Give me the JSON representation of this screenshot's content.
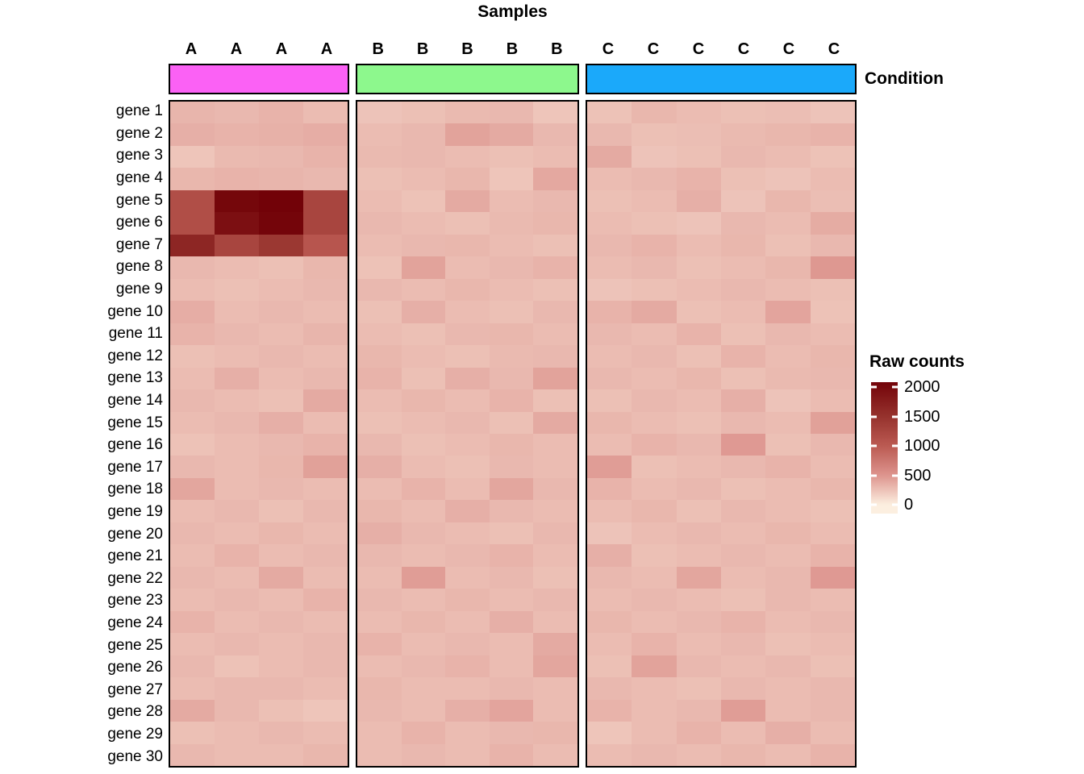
{
  "title": "Samples",
  "condition_label": "Condition",
  "legend": {
    "title": "Raw counts",
    "tick_labels": [
      "2000",
      "1500",
      "1000",
      "500",
      "0"
    ],
    "tick_values": [
      2000,
      1500,
      1000,
      500,
      0
    ]
  },
  "chart_data": {
    "type": "heatmap",
    "title": "Samples",
    "legend_title": "Raw counts",
    "annotation_label": "Condition",
    "column_groups": [
      {
        "name": "A",
        "color": "#FB61F5",
        "n_columns": 4
      },
      {
        "name": "B",
        "color": "#8DF88D",
        "n_columns": 5
      },
      {
        "name": "C",
        "color": "#1BA9FA",
        "n_columns": 6
      }
    ],
    "column_labels": [
      "A",
      "A",
      "A",
      "A",
      "B",
      "B",
      "B",
      "B",
      "B",
      "C",
      "C",
      "C",
      "C",
      "C",
      "C"
    ],
    "row_labels": [
      "gene 1",
      "gene 2",
      "gene 3",
      "gene 4",
      "gene 5",
      "gene 6",
      "gene 7",
      "gene 8",
      "gene 9",
      "gene 10",
      "gene 11",
      "gene 12",
      "gene 13",
      "gene 14",
      "gene 15",
      "gene 16",
      "gene 17",
      "gene 18",
      "gene 19",
      "gene 20",
      "gene 21",
      "gene 22",
      "gene 23",
      "gene 24",
      "gene 25",
      "gene 26",
      "gene 27",
      "gene 28",
      "gene 29",
      "gene 30"
    ],
    "value_range": [
      0,
      2096
    ],
    "legend_ticks": [
      0,
      500,
      1000,
      1500,
      2000
    ],
    "colormap_stops": [
      [
        0,
        "#FCEFE0"
      ],
      [
        500,
        "#DD948E"
      ],
      [
        1000,
        "#BB5A52"
      ],
      [
        1500,
        "#96322D"
      ],
      [
        2096,
        "#720208"
      ]
    ],
    "values": [
      [
        320,
        300,
        330,
        280,
        240,
        260,
        290,
        300,
        230,
        250,
        310,
        280,
        260,
        270,
        240
      ],
      [
        350,
        330,
        340,
        360,
        280,
        300,
        420,
        380,
        300,
        300,
        260,
        270,
        290,
        310,
        330
      ],
      [
        230,
        290,
        300,
        330,
        290,
        300,
        280,
        260,
        280,
        380,
        240,
        260,
        300,
        280,
        250
      ],
      [
        310,
        330,
        320,
        300,
        260,
        280,
        310,
        230,
        390,
        280,
        300,
        330,
        260,
        240,
        280
      ],
      [
        1150,
        2040,
        2096,
        1260,
        280,
        250,
        380,
        280,
        300,
        260,
        280,
        350,
        240,
        310,
        270
      ],
      [
        1150,
        1930,
        2060,
        1260,
        300,
        280,
        260,
        290,
        310,
        280,
        260,
        240,
        300,
        280,
        370
      ],
      [
        1650,
        1260,
        1430,
        1060,
        280,
        300,
        310,
        280,
        260,
        300,
        330,
        280,
        310,
        260,
        300
      ],
      [
        300,
        280,
        260,
        310,
        250,
        420,
        280,
        300,
        330,
        280,
        300,
        260,
        280,
        310,
        480
      ],
      [
        280,
        260,
        280,
        300,
        300,
        280,
        310,
        280,
        260,
        240,
        260,
        280,
        300,
        280,
        260
      ],
      [
        360,
        280,
        300,
        280,
        260,
        350,
        280,
        260,
        300,
        330,
        380,
        260,
        280,
        410,
        250
      ],
      [
        330,
        300,
        280,
        320,
        280,
        260,
        300,
        310,
        280,
        300,
        280,
        330,
        260,
        300,
        280
      ],
      [
        260,
        280,
        300,
        280,
        310,
        280,
        260,
        290,
        300,
        280,
        300,
        260,
        330,
        280,
        310
      ],
      [
        280,
        350,
        280,
        300,
        330,
        260,
        350,
        300,
        420,
        300,
        280,
        310,
        260,
        290,
        300
      ],
      [
        300,
        280,
        260,
        380,
        280,
        310,
        280,
        330,
        260,
        260,
        300,
        280,
        350,
        240,
        280
      ],
      [
        280,
        300,
        350,
        280,
        260,
        280,
        300,
        260,
        380,
        310,
        280,
        260,
        300,
        280,
        430
      ],
      [
        250,
        280,
        300,
        330,
        300,
        260,
        280,
        310,
        280,
        280,
        330,
        300,
        470,
        260,
        300
      ],
      [
        300,
        280,
        310,
        430,
        350,
        280,
        260,
        300,
        280,
        450,
        260,
        280,
        300,
        330,
        280
      ],
      [
        400,
        280,
        300,
        280,
        280,
        330,
        280,
        400,
        300,
        330,
        280,
        300,
        260,
        280,
        310
      ],
      [
        280,
        300,
        260,
        300,
        310,
        280,
        350,
        300,
        280,
        280,
        310,
        260,
        300,
        280,
        260
      ],
      [
        300,
        280,
        310,
        280,
        350,
        300,
        280,
        260,
        300,
        240,
        280,
        300,
        280,
        310,
        280
      ],
      [
        280,
        330,
        280,
        300,
        300,
        280,
        300,
        330,
        280,
        350,
        260,
        280,
        300,
        280,
        330
      ],
      [
        300,
        280,
        380,
        280,
        280,
        450,
        280,
        300,
        260,
        300,
        280,
        400,
        280,
        300,
        470
      ],
      [
        280,
        300,
        280,
        330,
        300,
        280,
        310,
        280,
        300,
        280,
        300,
        280,
        260,
        300,
        280
      ],
      [
        330,
        280,
        300,
        280,
        280,
        310,
        280,
        350,
        280,
        310,
        280,
        300,
        330,
        280,
        300
      ],
      [
        280,
        300,
        280,
        300,
        330,
        280,
        300,
        280,
        380,
        280,
        330,
        280,
        300,
        260,
        280
      ],
      [
        300,
        250,
        280,
        300,
        280,
        300,
        330,
        280,
        400,
        260,
        420,
        300,
        280,
        300,
        260
      ],
      [
        280,
        300,
        300,
        280,
        310,
        280,
        280,
        300,
        280,
        300,
        280,
        260,
        300,
        280,
        300
      ],
      [
        380,
        300,
        260,
        230,
        300,
        280,
        350,
        410,
        280,
        330,
        280,
        300,
        450,
        280,
        300
      ],
      [
        260,
        280,
        300,
        280,
        280,
        330,
        280,
        300,
        310,
        230,
        280,
        330,
        280,
        350,
        280
      ],
      [
        300,
        280,
        280,
        310,
        280,
        300,
        280,
        330,
        280,
        280,
        300,
        280,
        310,
        280,
        330
      ]
    ]
  }
}
